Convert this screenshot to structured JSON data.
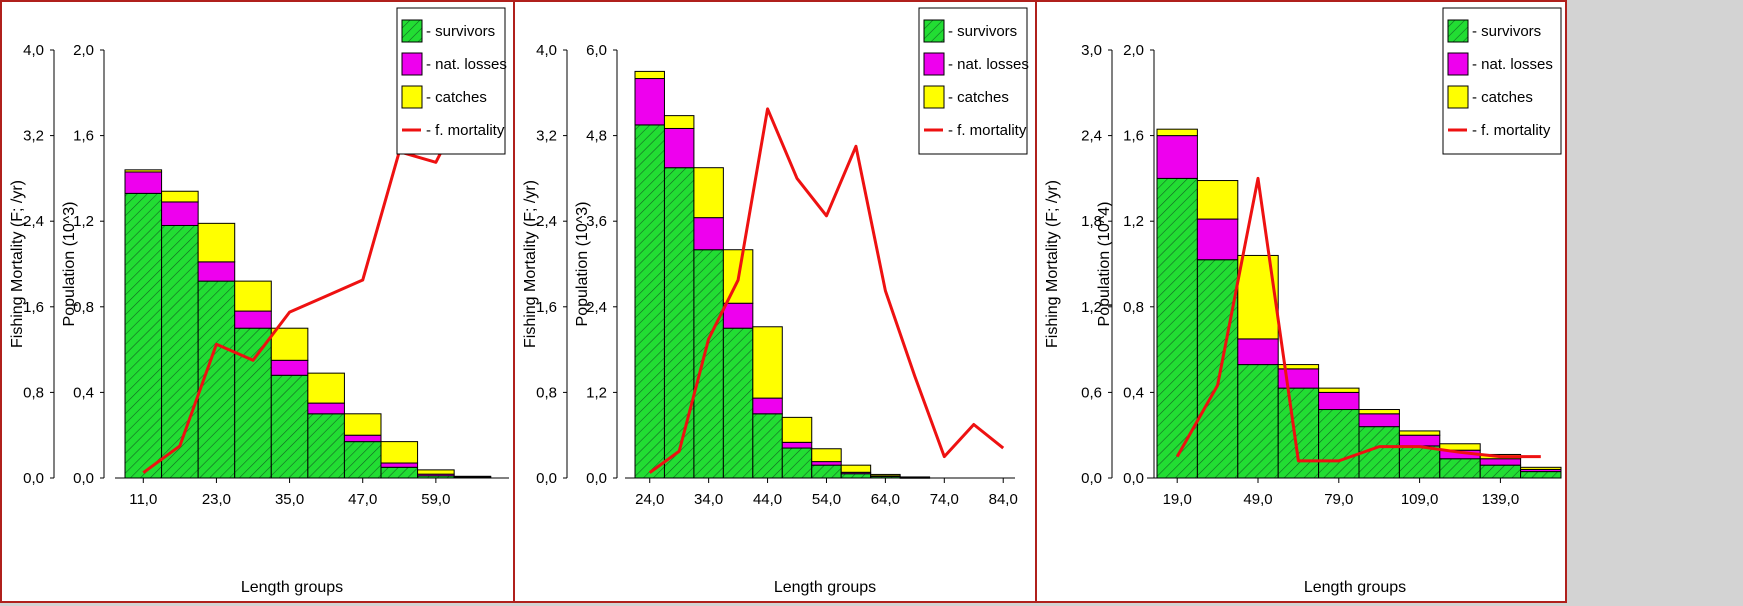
{
  "colors": {
    "survivors": "#22dd33",
    "nat_losses": "#ee00ee",
    "catches": "#ffff00",
    "f_mortality": "#ee1111",
    "border": "#b0201c",
    "background": "#d3d3d3"
  },
  "legend": {
    "survivors": "- survivors",
    "nat_losses": "- nat. losses",
    "catches": "- catches",
    "f_mortality": "- f. mortality"
  },
  "chart_data": [
    {
      "type": "bar",
      "stacked": true,
      "legend_position": "top-right",
      "grid": false,
      "xlabel": "Length groups",
      "ylabel_left": "Fishing Mortality (F; /yr)",
      "ylabel_right": "Population (10^3)",
      "ylim_left": [
        0,
        4.0
      ],
      "ylim_right": [
        0,
        2.0
      ],
      "yticks_left": [
        "0,0",
        "0,8",
        "1,6",
        "2,4",
        "3,2",
        "4,0"
      ],
      "yticks_right": [
        "0,0",
        "0,4",
        "0,8",
        "1,2",
        "1,6",
        "2,0"
      ],
      "x_start": 11.0,
      "x_step": 6.0,
      "x_range": [
        8.0,
        71.0
      ],
      "xticks": [
        "11,0",
        "23,0",
        "35,0",
        "47,0",
        "59,0"
      ],
      "xtick_values": [
        11.0,
        23.0,
        35.0,
        47.0,
        59.0
      ],
      "series": [
        {
          "name": "- survivors",
          "values": [
            1.33,
            1.18,
            0.92,
            0.7,
            0.48,
            0.3,
            0.17,
            0.05,
            0.01,
            0.005
          ]
        },
        {
          "name": "- nat. losses",
          "values": [
            0.1,
            0.11,
            0.09,
            0.08,
            0.07,
            0.05,
            0.03,
            0.02,
            0.008,
            0.003
          ]
        },
        {
          "name": "- catches",
          "values": [
            0.01,
            0.05,
            0.18,
            0.14,
            0.15,
            0.14,
            0.1,
            0.1,
            0.02,
            0.0
          ]
        }
      ],
      "line": {
        "name": "- f. mortality",
        "x": [
          11,
          17,
          23,
          29,
          35,
          41,
          47,
          53,
          59,
          65
        ],
        "y": [
          0.05,
          0.3,
          1.25,
          1.1,
          1.55,
          1.7,
          1.85,
          3.05,
          2.95,
          3.62
        ]
      }
    },
    {
      "type": "bar",
      "stacked": true,
      "legend_position": "top-right",
      "grid": false,
      "xlabel": "Length groups",
      "ylabel_left": "Fishing Mortality (F; /yr)",
      "ylabel_right": "Population (10^3)",
      "ylim_left": [
        0,
        4.0
      ],
      "ylim_right": [
        0,
        6.0
      ],
      "yticks_left": [
        "0,0",
        "0,8",
        "1,6",
        "2,4",
        "3,2",
        "4,0"
      ],
      "yticks_right": [
        "0,0",
        "1,2",
        "2,4",
        "3,6",
        "4,8",
        "6,0"
      ],
      "x_start": 24.0,
      "x_step": 5.0,
      "x_range": [
        21.5,
        86.0
      ],
      "xticks": [
        "24,0",
        "34,0",
        "44,0",
        "54,0",
        "64,0",
        "74,0",
        "84,0"
      ],
      "xtick_values": [
        24.0,
        34.0,
        44.0,
        54.0,
        64.0,
        74.0,
        84.0
      ],
      "series": [
        {
          "name": "- survivors",
          "values": [
            4.95,
            4.35,
            3.2,
            2.1,
            0.9,
            0.42,
            0.18,
            0.06,
            0.02,
            0.005
          ]
        },
        {
          "name": "- nat. losses",
          "values": [
            0.65,
            0.55,
            0.45,
            0.35,
            0.22,
            0.08,
            0.05,
            0.02,
            0.01,
            0.0
          ]
        },
        {
          "name": "- catches",
          "values": [
            0.1,
            0.18,
            0.7,
            0.75,
            1.0,
            0.35,
            0.18,
            0.1,
            0.02,
            0.01
          ]
        }
      ],
      "line": {
        "name": "- f. mortality",
        "x": [
          24,
          29,
          34,
          39,
          44,
          49,
          54,
          59,
          64,
          69,
          74,
          79,
          84
        ],
        "y": [
          0.05,
          0.25,
          1.3,
          1.85,
          3.45,
          2.8,
          2.45,
          3.1,
          1.75,
          0.95,
          0.2,
          0.5,
          0.28
        ]
      }
    },
    {
      "type": "bar",
      "stacked": true,
      "legend_position": "top-right",
      "grid": false,
      "xlabel": "Length groups",
      "ylabel_left": "Fishing Mortality (F; /yr)",
      "ylabel_right": "Population (10^4)",
      "ylim_left": [
        0,
        3.0
      ],
      "ylim_right": [
        0,
        2.0
      ],
      "yticks_left": [
        "0,0",
        "0,6",
        "1,2",
        "1,8",
        "2,4",
        "3,0"
      ],
      "yticks_right": [
        "0,0",
        "0,4",
        "0,8",
        "1,2",
        "1,6",
        "2,0"
      ],
      "x_start": 19.0,
      "x_step": 15.0,
      "x_range": [
        11.5,
        161.5
      ],
      "xticks": [
        "19,0",
        "49,0",
        "79,0",
        "109,0",
        "139,0"
      ],
      "xtick_values": [
        19.0,
        49.0,
        79.0,
        109.0,
        139.0
      ],
      "series": [
        {
          "name": "- survivors",
          "values": [
            1.4,
            1.02,
            0.53,
            0.42,
            0.32,
            0.24,
            0.15,
            0.09,
            0.06,
            0.03
          ]
        },
        {
          "name": "- nat. losses",
          "values": [
            0.2,
            0.19,
            0.12,
            0.09,
            0.08,
            0.06,
            0.05,
            0.04,
            0.03,
            0.01
          ]
        },
        {
          "name": "- catches",
          "values": [
            0.03,
            0.18,
            0.39,
            0.02,
            0.02,
            0.02,
            0.02,
            0.03,
            0.02,
            0.01
          ]
        }
      ],
      "line": {
        "name": "- f. mortality",
        "x": [
          19,
          34,
          49,
          64,
          79,
          94,
          109,
          124,
          139,
          154
        ],
        "y": [
          0.15,
          0.65,
          2.1,
          0.12,
          0.12,
          0.22,
          0.22,
          0.18,
          0.15,
          0.15
        ]
      }
    }
  ]
}
